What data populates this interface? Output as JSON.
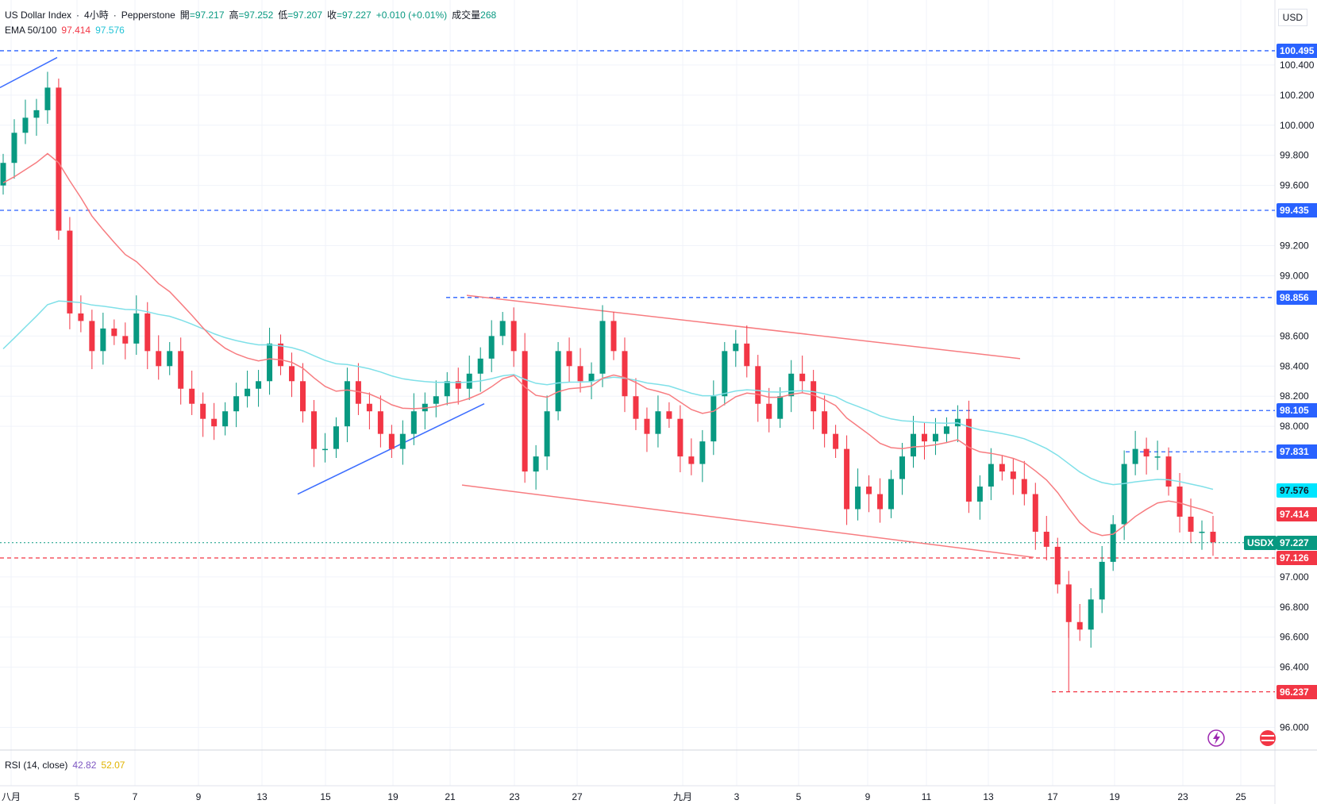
{
  "header": {
    "symbol": "US Dollar Index",
    "interval": "4小時",
    "sep": "·",
    "source": "Pepperstone",
    "open_label": "開",
    "open": "=97.217",
    "high_label": "高",
    "high": "=97.252",
    "low_label": "低",
    "low": "=97.207",
    "close_label": "收",
    "close": "=97.227",
    "change": "+0.010 (+0.01%)",
    "volume_label": "成交量",
    "volume": "268",
    "ema_label": "EMA 50/100",
    "ema50": "97.414",
    "ema100": "97.576"
  },
  "currency": "USD",
  "rsi": {
    "label": "RSI (14, close)",
    "value1": "42.82",
    "value2": "52.07"
  },
  "colors": {
    "up": "#089981",
    "down": "#f23645",
    "ema50": "#f77c80",
    "ema100": "#7fe0e8",
    "level_blue": "#2962ff",
    "level_red": "#f23645",
    "trendline_red": "#f77c80",
    "trendline_blue": "#3d6eff"
  },
  "chart_data": {
    "type": "candlestick",
    "y_axis": {
      "ticks": [
        "100.400",
        "100.200",
        "100.000",
        "99.800",
        "99.600",
        "99.200",
        "99.000",
        "98.600",
        "98.400",
        "98.200",
        "98.000",
        "97.000",
        "96.800",
        "96.600",
        "96.400",
        "96.000"
      ],
      "range": [
        95.85,
        100.6
      ]
    },
    "x_axis": {
      "ticks": [
        "八月",
        "5",
        "7",
        "9",
        "13",
        "15",
        "19",
        "21",
        "23",
        "27",
        "九月",
        "3",
        "5",
        "9",
        "11",
        "13",
        "17",
        "19",
        "23",
        "25"
      ]
    },
    "price_labels": [
      {
        "text": "100.495",
        "value": 100.495,
        "style": "blue"
      },
      {
        "text": "99.435",
        "value": 99.435,
        "style": "blue"
      },
      {
        "text": "98.856",
        "value": 98.856,
        "style": "blue"
      },
      {
        "text": "98.105",
        "value": 98.105,
        "style": "blue"
      },
      {
        "text": "97.831",
        "value": 97.831,
        "style": "blue"
      },
      {
        "text": "97.576",
        "value": 97.576,
        "style": "cyan"
      },
      {
        "text": "97.414",
        "value": 97.414,
        "style": "red"
      },
      {
        "text": "97.227",
        "value": 97.227,
        "style": "green",
        "tag": "USDX"
      },
      {
        "text": "97.126",
        "value": 97.126,
        "style": "red"
      },
      {
        "text": "96.237",
        "value": 96.237,
        "style": "red"
      }
    ],
    "candles_close": [
      99.75,
      99.95,
      100.05,
      100.1,
      100.25,
      99.3,
      98.75,
      98.7,
      98.5,
      98.65,
      98.6,
      98.55,
      98.75,
      98.5,
      98.4,
      98.5,
      98.25,
      98.15,
      98.05,
      98.0,
      98.1,
      98.2,
      98.25,
      98.3,
      98.55,
      98.4,
      98.3,
      98.1,
      97.85,
      97.85,
      98.0,
      98.3,
      98.15,
      98.1,
      97.95,
      97.85,
      97.95,
      98.1,
      98.15,
      98.2,
      98.3,
      98.25,
      98.35,
      98.45,
      98.6,
      98.7,
      98.5,
      97.7,
      97.8,
      98.1,
      98.5,
      98.4,
      98.3,
      98.35,
      98.7,
      98.5,
      98.2,
      98.05,
      97.95,
      98.1,
      98.05,
      97.8,
      97.75,
      97.9,
      98.2,
      98.5,
      98.55,
      98.4,
      98.15,
      98.05,
      98.2,
      98.35,
      98.3,
      98.1,
      97.95,
      97.85,
      97.45,
      97.6,
      97.55,
      97.45,
      97.65,
      97.8,
      97.95,
      97.9,
      97.95,
      98.0,
      98.05,
      97.5,
      97.6,
      97.75,
      97.7,
      97.65,
      97.55,
      97.3,
      97.2,
      96.95,
      96.7,
      96.65,
      96.85,
      97.1,
      97.35,
      97.75,
      97.85,
      97.8,
      97.8,
      97.6,
      97.4,
      97.3,
      97.3,
      97.23
    ],
    "candles_open": [
      99.6,
      99.75,
      99.95,
      100.05,
      100.1,
      100.25,
      99.3,
      98.75,
      98.7,
      98.5,
      98.65,
      98.6,
      98.55,
      98.75,
      98.5,
      98.4,
      98.5,
      98.25,
      98.15,
      98.05,
      98.0,
      98.1,
      98.2,
      98.25,
      98.3,
      98.55,
      98.4,
      98.3,
      98.1,
      97.85,
      97.85,
      98.0,
      98.3,
      98.15,
      98.1,
      97.95,
      97.85,
      97.95,
      98.1,
      98.15,
      98.2,
      98.3,
      98.25,
      98.35,
      98.45,
      98.6,
      98.7,
      98.5,
      97.7,
      97.8,
      98.1,
      98.5,
      98.4,
      98.3,
      98.35,
      98.7,
      98.5,
      98.2,
      98.05,
      97.95,
      98.1,
      98.05,
      97.8,
      97.75,
      97.9,
      98.2,
      98.5,
      98.55,
      98.4,
      98.15,
      98.05,
      98.2,
      98.35,
      98.3,
      98.1,
      97.95,
      97.85,
      97.45,
      97.6,
      97.55,
      97.45,
      97.65,
      97.8,
      97.95,
      97.9,
      97.95,
      98.0,
      98.05,
      97.5,
      97.6,
      97.75,
      97.7,
      97.65,
      97.55,
      97.3,
      97.2,
      96.95,
      96.7,
      96.65,
      96.85,
      97.1,
      97.35,
      97.75,
      97.85,
      97.8,
      97.8,
      97.6,
      97.4,
      97.3,
      97.3
    ]
  }
}
